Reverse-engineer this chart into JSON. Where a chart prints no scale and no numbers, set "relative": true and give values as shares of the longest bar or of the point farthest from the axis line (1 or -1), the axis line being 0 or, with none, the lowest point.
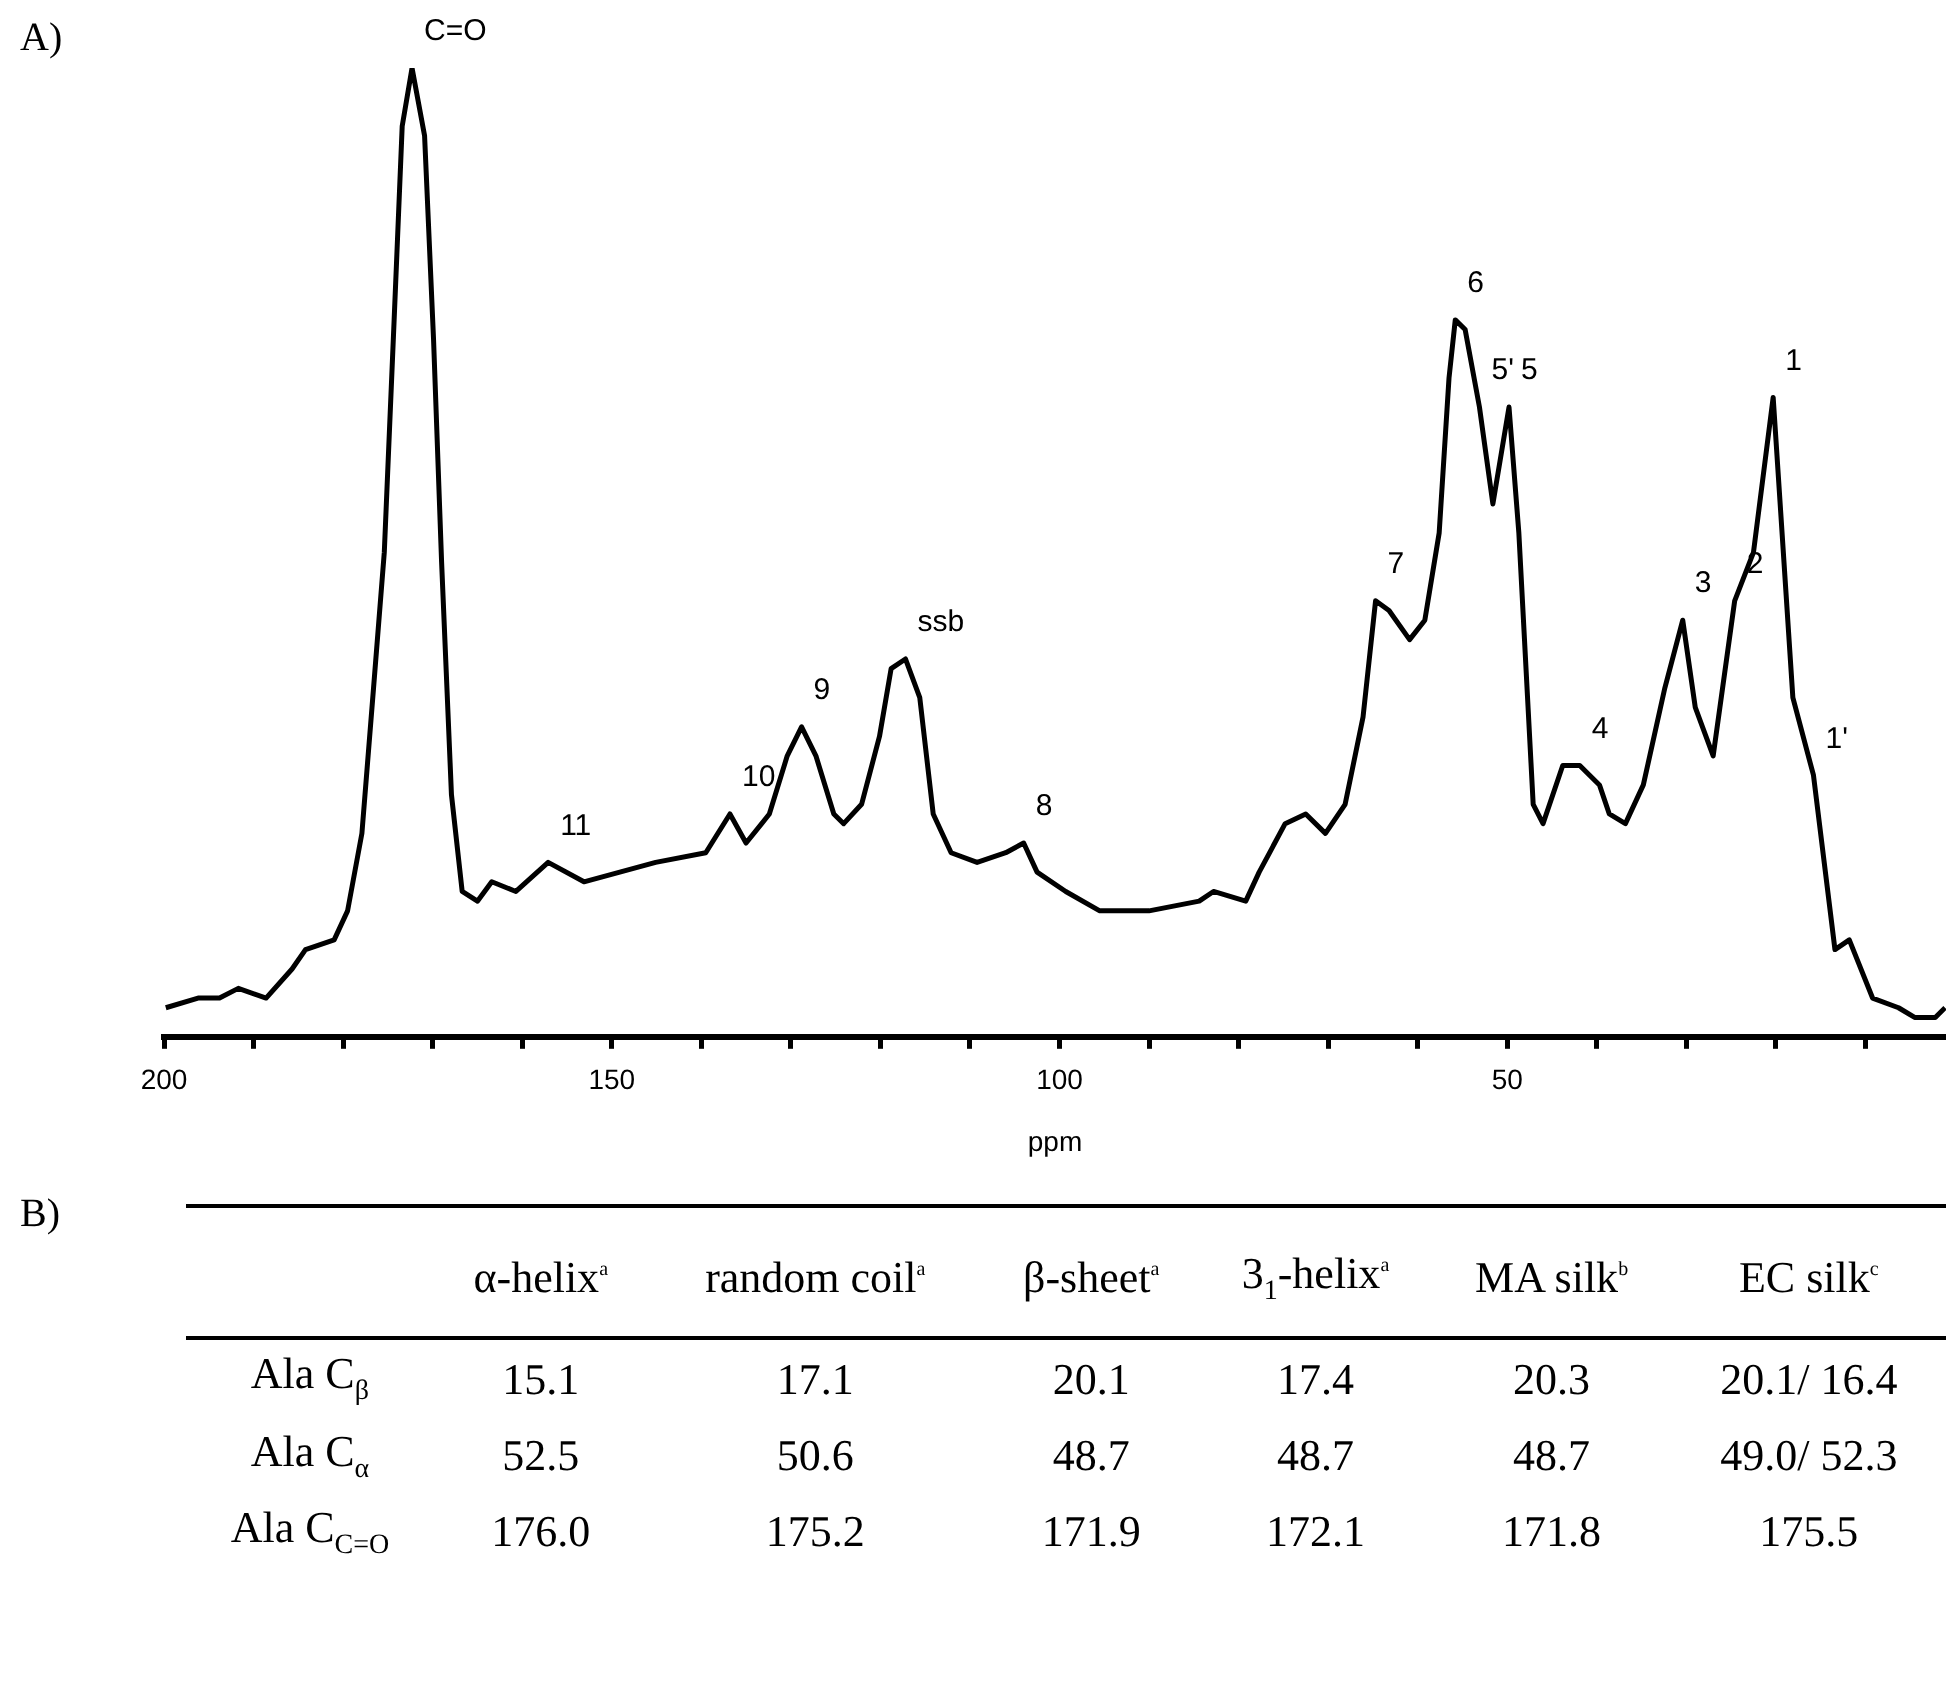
{
  "chart_data": [
    {
      "type": "line",
      "title": "A)",
      "xlabel": "ppm",
      "relative": true,
      "xlim": [
        200,
        1
      ],
      "xticks": [
        200,
        {
          "value": 190,
          "label": null
        },
        {
          "value": 180,
          "label": null
        },
        {
          "value": 170,
          "label": null
        },
        {
          "value": 160,
          "label": null
        },
        150,
        {
          "value": 140,
          "label": null
        },
        {
          "value": 130,
          "label": null
        },
        {
          "value": 120,
          "label": null
        },
        {
          "value": 110,
          "label": null
        },
        100,
        {
          "value": 90,
          "label": null
        },
        {
          "value": 80,
          "label": null
        },
        {
          "value": 70,
          "label": null
        },
        {
          "value": 60,
          "label": null
        },
        50,
        {
          "value": 40,
          "label": null
        },
        {
          "value": 30,
          "label": null
        },
        {
          "value": 20,
          "label": null
        },
        {
          "value": 10,
          "label": null
        }
      ],
      "grid": false,
      "legend": false,
      "series": [
        {
          "color": "#000000",
          "x": [
            199.8,
            196.2,
            193.8,
            191.7,
            188.6,
            185.7,
            184.2,
            181.0,
            179.5,
            177.9,
            176.6,
            175.4,
            174.3,
            173.4,
            172.3,
            170.9,
            169.9,
            169.0,
            167.9,
            166.7,
            165.0,
            163.4,
            160.7,
            157.1,
            153.1,
            149.1,
            145.1,
            139.5,
            136.8,
            135.0,
            132.4,
            130.4,
            128.8,
            127.2,
            125.2,
            124.1,
            122.1,
            120.1,
            118.8,
            117.2,
            115.6,
            114.1,
            112.1,
            109.2,
            106.0,
            104.0,
            102.5,
            99.3,
            95.5,
            90.0,
            84.4,
            82.8,
            79.2,
            77.7,
            74.8,
            72.5,
            70.3,
            68.1,
            66.1,
            64.7,
            63.2,
            60.9,
            59.2,
            57.6,
            56.5,
            55.8,
            54.7,
            53.1,
            51.6,
            49.8,
            48.7,
            47.1,
            46.0,
            43.8,
            41.9,
            39.7,
            38.6,
            36.8,
            34.8,
            32.4,
            30.4,
            29.0,
            27.0,
            24.6,
            22.5,
            20.3,
            18.1,
            15.8,
            13.4,
            11.8,
            9.2,
            6.3,
            4.5,
            2.2,
            1.1
          ],
          "values": [
            0.03,
            0.04,
            0.04,
            0.05,
            0.04,
            0.07,
            0.09,
            0.1,
            0.13,
            0.21,
            0.36,
            0.5,
            0.74,
            0.94,
            1,
            0.93,
            0.72,
            0.49,
            0.25,
            0.15,
            0.14,
            0.16,
            0.15,
            0.18,
            0.16,
            0.17,
            0.18,
            0.19,
            0.23,
            0.2,
            0.23,
            0.29,
            0.32,
            0.29,
            0.23,
            0.22,
            0.24,
            0.31,
            0.38,
            0.39,
            0.35,
            0.23,
            0.19,
            0.18,
            0.19,
            0.2,
            0.17,
            0.15,
            0.13,
            0.13,
            0.14,
            0.15,
            0.14,
            0.17,
            0.22,
            0.23,
            0.21,
            0.24,
            0.33,
            0.45,
            0.44,
            0.41,
            0.43,
            0.52,
            0.68,
            0.74,
            0.73,
            0.65,
            0.55,
            0.65,
            0.52,
            0.24,
            0.22,
            0.28,
            0.28,
            0.26,
            0.23,
            0.22,
            0.26,
            0.36,
            0.43,
            0.34,
            0.29,
            0.45,
            0.5,
            0.66,
            0.35,
            0.27,
            0.09,
            0.1,
            0.04,
            0.03,
            0.02,
            0.02,
            0.03
          ]
        }
      ],
      "annotations": [
        {
          "text": "C=O",
          "x": 172.3,
          "y": 1
        },
        {
          "text": "11",
          "x": 157.1,
          "y": 0.18
        },
        {
          "text": "10",
          "x": 136.8,
          "y": 0.23
        },
        {
          "text": "9",
          "x": 128.8,
          "y": 0.32
        },
        {
          "text": "ssb",
          "x": 117.2,
          "y": 0.39
        },
        {
          "text": "8",
          "x": 104.0,
          "y": 0.2
        },
        {
          "text": "7",
          "x": 64.7,
          "y": 0.45
        },
        {
          "text": "6",
          "x": 55.8,
          "y": 0.74
        },
        {
          "text": "5'",
          "x": 53.1,
          "y": 0.65
        },
        {
          "text": "5",
          "x": 49.8,
          "y": 0.65
        },
        {
          "text": "4",
          "x": 41.9,
          "y": 0.28
        },
        {
          "text": "3",
          "x": 30.4,
          "y": 0.43
        },
        {
          "text": "2",
          "x": 24.6,
          "y": 0.45
        },
        {
          "text": "1",
          "x": 20.3,
          "y": 0.66
        },
        {
          "text": "1'",
          "x": 15.8,
          "y": 0.27
        }
      ]
    },
    {
      "type": "other",
      "title": "B)",
      "categories": [
        "α-helix$^{a}$",
        "random coil$^{a}$",
        "β-sheet$^{a}$",
        "3$_{1}$-helix$^{a}$",
        "MA silk$^{b}$",
        "EC silk$^{c}$"
      ],
      "y_categories": [
        "Ala C$_{β}$",
        "Ala C$_{α}$",
        "Ala C$_{C=O}$"
      ],
      "cell_labels": [
        [
          "15.1",
          "17.1",
          "20.1",
          "17.4",
          "20.3",
          "20.1/ 16.4"
        ],
        [
          "52.5",
          "50.6",
          "48.7",
          "48.7",
          "48.7",
          "49.0/ 52.3"
        ],
        [
          "176.0",
          "175.2",
          "171.9",
          "172.1",
          "171.8",
          "175.5"
        ]
      ]
    }
  ]
}
